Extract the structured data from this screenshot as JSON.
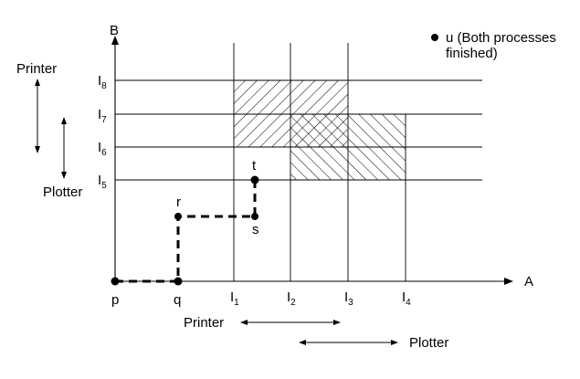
{
  "axes": {
    "x_label": "A",
    "y_label": "B"
  },
  "x_ticks": [
    {
      "base": "I",
      "sub": "1"
    },
    {
      "base": "I",
      "sub": "2"
    },
    {
      "base": "I",
      "sub": "3"
    },
    {
      "base": "I",
      "sub": "4"
    }
  ],
  "y_ticks": [
    {
      "base": "I",
      "sub": "5"
    },
    {
      "base": "I",
      "sub": "6"
    },
    {
      "base": "I",
      "sub": "7"
    },
    {
      "base": "I",
      "sub": "8"
    }
  ],
  "path_points": {
    "p": "p",
    "q": "q",
    "r": "r",
    "s": "s",
    "t": "t"
  },
  "finish_note": {
    "line1": "u (Both processes",
    "line2": "finished)"
  },
  "y_resources": {
    "printer": "Printer",
    "plotter": "Plotter"
  },
  "x_resources": {
    "printer": "Printer",
    "plotter": "Plotter"
  }
}
